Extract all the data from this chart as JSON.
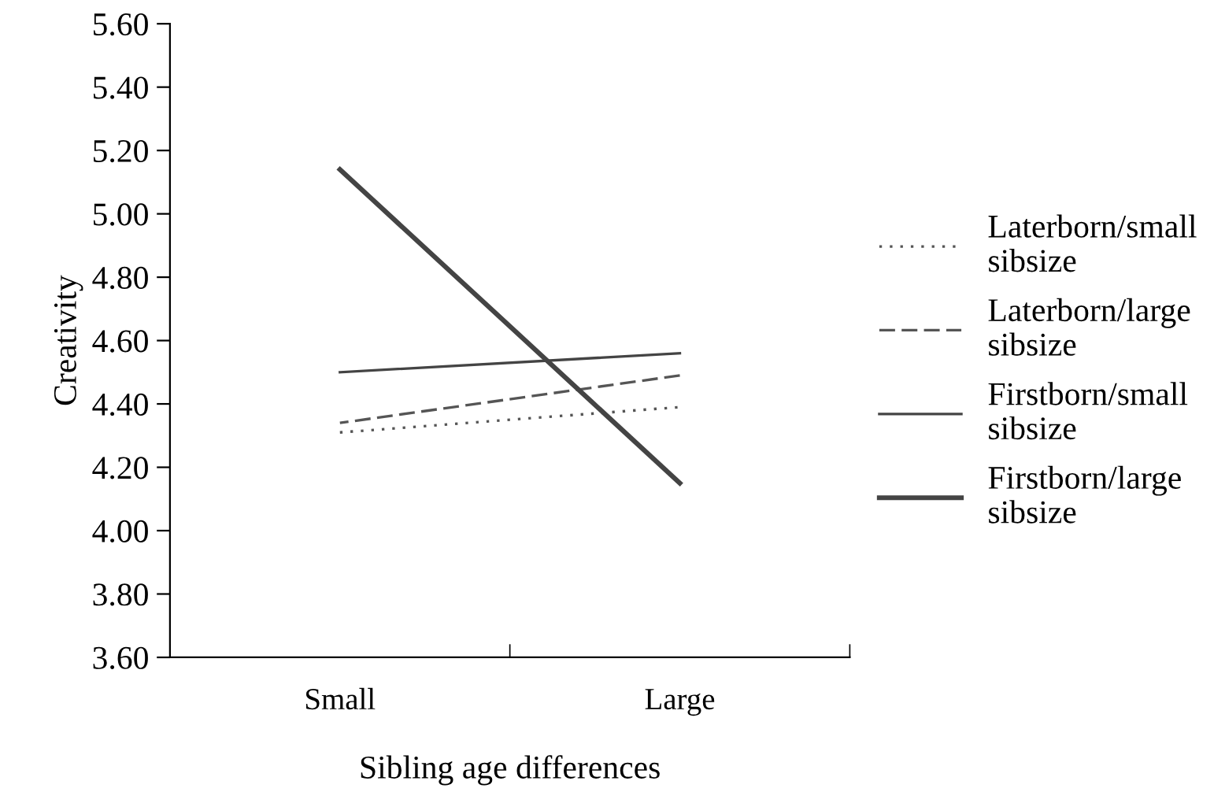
{
  "chart_data": {
    "type": "line",
    "xlabel": "Sibling age differences",
    "ylabel": "Creativity",
    "categories": [
      "Small",
      "Large"
    ],
    "ylim": [
      3.6,
      5.6
    ],
    "yticks": [
      {
        "value": 3.6,
        "label": "3.60"
      },
      {
        "value": 3.8,
        "label": "3.80"
      },
      {
        "value": 4.0,
        "label": "4.00"
      },
      {
        "value": 4.2,
        "label": "4.20"
      },
      {
        "value": 4.4,
        "label": "4.40"
      },
      {
        "value": 4.6,
        "label": "4.60"
      },
      {
        "value": 4.8,
        "label": "4.80"
      },
      {
        "value": 5.0,
        "label": "5.00"
      },
      {
        "value": 5.2,
        "label": "5.20"
      },
      {
        "value": 5.4,
        "label": "5.40"
      },
      {
        "value": 5.6,
        "label": "5.60"
      }
    ],
    "grid": false,
    "legend": "right",
    "marker": "none",
    "series": [
      {
        "name": "Laterborn/small\nsibsize",
        "color": "#555555",
        "line_style": "dotted",
        "values": [
          4.31,
          4.39
        ]
      },
      {
        "name": "Laterborn/large\nsibsize",
        "color": "#555555",
        "line_style": "dashed",
        "values": [
          4.34,
          4.49
        ]
      },
      {
        "name": "Firstborn/small\nsibsize",
        "color": "#444444",
        "line_style": "solid",
        "values": [
          4.5,
          4.56
        ]
      },
      {
        "name": "Firstborn/large\nsibsize",
        "color": "#444444",
        "line_style": "solid",
        "values": [
          5.14,
          4.15
        ]
      }
    ]
  }
}
